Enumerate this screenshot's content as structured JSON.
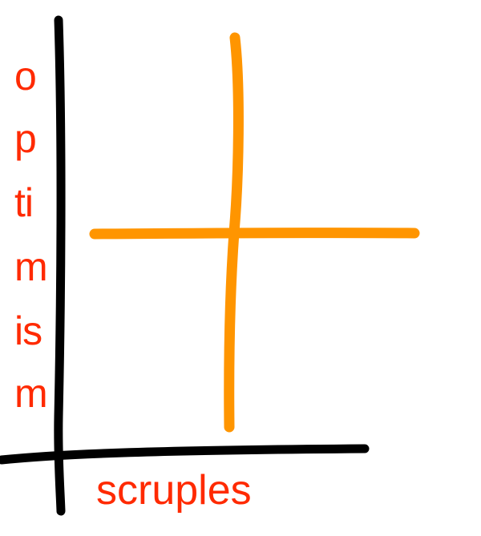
{
  "diagram": {
    "y_axis_label_lines": [
      "o",
      "p",
      "ti",
      "m",
      "is",
      "m"
    ],
    "x_axis_label": "scruples",
    "colors": {
      "axes": "#000000",
      "cross": "#ff9500",
      "labels": "#ff2a00",
      "background": "#ffffff"
    }
  }
}
